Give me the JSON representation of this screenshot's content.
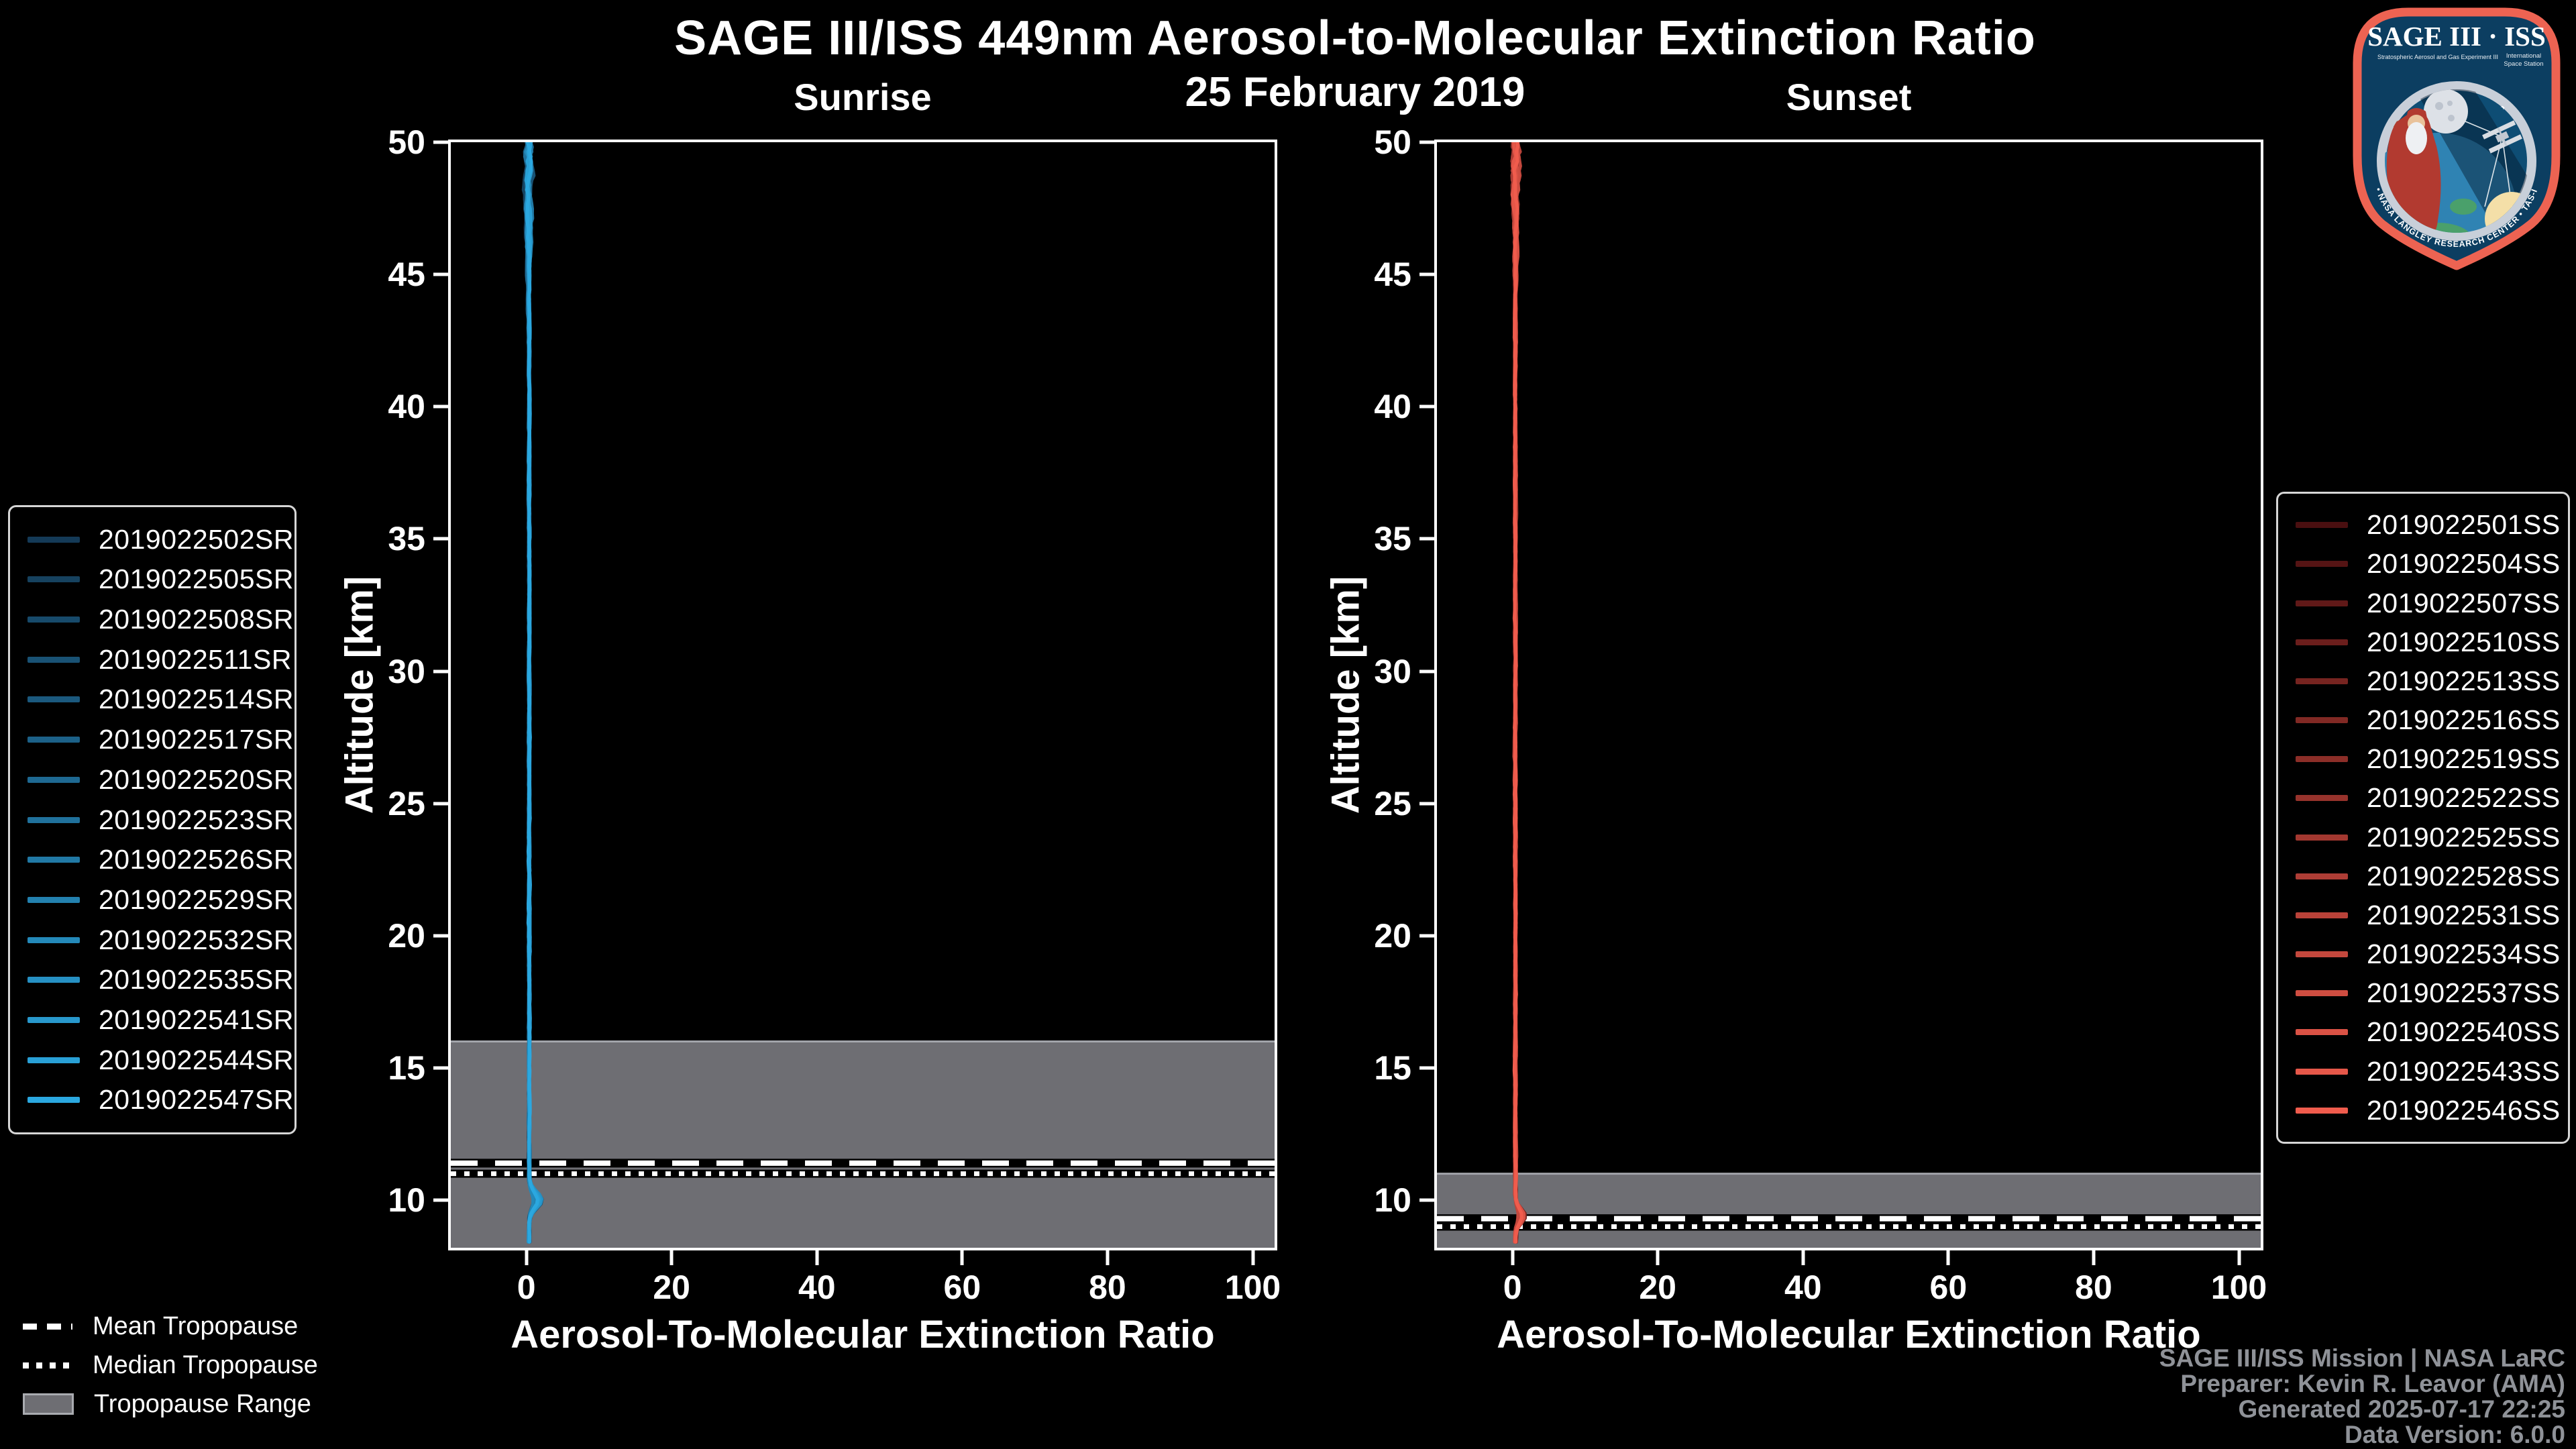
{
  "header": {
    "title": "SAGE III/ISS 449nm Aerosol-to-Molecular Extinction Ratio",
    "date": "25 February 2019"
  },
  "chart_data": [
    {
      "type": "line",
      "title": "Sunrise",
      "xlabel": "Aerosol-To-Molecular Extinction Ratio",
      "ylabel": "Altitude [km]",
      "xlim": [
        -10.4,
        103
      ],
      "ylim": [
        8.2,
        50
      ],
      "xticks": [
        0,
        20,
        40,
        60,
        80,
        100
      ],
      "yticks": [
        10,
        15,
        20,
        25,
        30,
        35,
        40,
        45,
        50
      ],
      "grid": false,
      "legend_position": "outside-left",
      "series": [
        {
          "name": "2019022502SR",
          "color": "#143A57"
        },
        {
          "name": "2019022505SR",
          "color": "#16425F"
        },
        {
          "name": "2019022508SR",
          "color": "#174A6B"
        },
        {
          "name": "2019022511SR",
          "color": "#195274"
        },
        {
          "name": "2019022514SR",
          "color": "#1B597E"
        },
        {
          "name": "2019022517SR",
          "color": "#1C6188"
        },
        {
          "name": "2019022520SR",
          "color": "#1E6992"
        },
        {
          "name": "2019022523SR",
          "color": "#20719C"
        },
        {
          "name": "2019022526SR",
          "color": "#2179A5"
        },
        {
          "name": "2019022529SR",
          "color": "#2381AF"
        },
        {
          "name": "2019022532SR",
          "color": "#2489B9"
        },
        {
          "name": "2019022535SR",
          "color": "#2690C3"
        },
        {
          "name": "2019022541SR",
          "color": "#2898CC"
        },
        {
          "name": "2019022544SR",
          "color": "#29A0D6"
        },
        {
          "name": "2019022547SR",
          "color": "#2BA8E0"
        }
      ],
      "profile": {
        "description": "All sunrise extinction-ratio profiles hug 0 (~0.4) from 8.3 to 50 km; jitter grows above ~44 km and a small enhancement to ~2 appears near 10 km.",
        "base_ratio": 0.4,
        "alt_min_km": 8.3,
        "alt_max_km": 50,
        "bump": {
          "alt_km": 10.0,
          "sigma_km": 0.3,
          "max_ratio": 1.9
        }
      },
      "tropopause": {
        "range_top_km": 16.0,
        "range_bottom_km": 8.2,
        "mean_km": 11.4,
        "median_km": 11.0
      }
    },
    {
      "type": "line",
      "title": "Sunset",
      "xlabel": "Aerosol-To-Molecular Extinction Ratio",
      "ylabel": "Altitude [km]",
      "xlim": [
        -10.4,
        103
      ],
      "ylim": [
        8.2,
        50
      ],
      "xticks": [
        0,
        20,
        40,
        60,
        80,
        100
      ],
      "yticks": [
        10,
        15,
        20,
        25,
        30,
        35,
        40,
        45,
        50
      ],
      "grid": false,
      "legend_position": "outside-right",
      "series": [
        {
          "name": "2019022501SS",
          "color": "#4A0F10"
        },
        {
          "name": "2019022504SS",
          "color": "#551414"
        },
        {
          "name": "2019022507SS",
          "color": "#601918"
        },
        {
          "name": "2019022510SS",
          "color": "#6B1E1C"
        },
        {
          "name": "2019022513SS",
          "color": "#762420"
        },
        {
          "name": "2019022516SS",
          "color": "#812924"
        },
        {
          "name": "2019022519SS",
          "color": "#8C2E28"
        },
        {
          "name": "2019022522SS",
          "color": "#97332C"
        },
        {
          "name": "2019022525SS",
          "color": "#A33830"
        },
        {
          "name": "2019022528SS",
          "color": "#AE3D35"
        },
        {
          "name": "2019022531SS",
          "color": "#B94239"
        },
        {
          "name": "2019022534SS",
          "color": "#C4483D"
        },
        {
          "name": "2019022537SS",
          "color": "#CF4D41"
        },
        {
          "name": "2019022540SS",
          "color": "#DA5245"
        },
        {
          "name": "2019022543SS",
          "color": "#E55749"
        },
        {
          "name": "2019022546SS",
          "color": "#F05C4D"
        }
      ],
      "profile": {
        "description": "All sunset extinction-ratio profiles hug 0 (~0.4) from 8.3 to 50 km; jitter grows above ~44 km and a small enhancement to ~1.5 appears near 9.4 km.",
        "base_ratio": 0.4,
        "alt_min_km": 8.3,
        "alt_max_km": 50,
        "bump": {
          "alt_km": 9.4,
          "sigma_km": 0.28,
          "max_ratio": 1.4
        }
      },
      "tropopause": {
        "range_top_km": 11.0,
        "range_bottom_km": 8.2,
        "mean_km": 9.3,
        "median_km": 9.0
      }
    }
  ],
  "legend_overlay": {
    "items": [
      {
        "label": "Mean Tropopause",
        "style": "dashed"
      },
      {
        "label": "Median Tropopause",
        "style": "dotted"
      },
      {
        "label": "Tropopause Range",
        "style": "band",
        "color": "#6e6e73"
      }
    ]
  },
  "credits": {
    "lines": [
      "SAGE III/ISS Mission | NASA LaRC",
      "Preparer: Kevin R. Leavor (AMA)",
      "Generated 2025-07-17 22:25",
      "Data Version: 6.0.0"
    ]
  },
  "logo": {
    "title": "SAGE III · ISS",
    "subtitle_left": "Stratospheric Aerosol and Gas Experiment III",
    "subtitle_right_line1": "International",
    "subtitle_right_line2": "Space Station",
    "ring_text": "BALL • NASA LANGLEY RESEARCH CENTER • TAS-I • ESA"
  },
  "style": {
    "background": "#000000",
    "text": "#ffffff",
    "muted_text": "#8f9298",
    "band_color": "#6e6e73",
    "band_edge_color": "#a2a4aa",
    "spine_color": "#ffffff",
    "logo_border": "#ED6352",
    "logo_navy": "#0C3E61"
  }
}
